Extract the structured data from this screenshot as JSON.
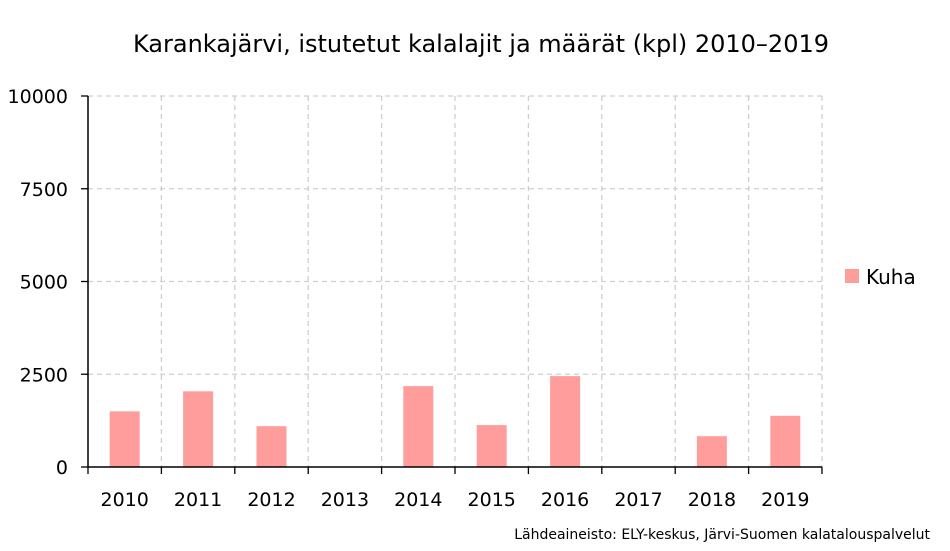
{
  "chart_data": {
    "type": "bar",
    "title": "Karankajärvi, istutetut kalalajit ja määrät (kpl) 2010–2019",
    "categories": [
      "2010",
      "2011",
      "2012",
      "2013",
      "2014",
      "2015",
      "2016",
      "2017",
      "2018",
      "2019"
    ],
    "series": [
      {
        "name": "Kuha",
        "values": [
          1500,
          2040,
          1100,
          0,
          2180,
          1130,
          2450,
          0,
          830,
          1380
        ]
      }
    ],
    "ylim": [
      0,
      10000
    ],
    "yticks": [
      "0",
      "2500",
      "5000",
      "7500",
      "10000"
    ],
    "grid": true,
    "legend_position": "right",
    "colors": {
      "Kuha": "#ff9c9c"
    },
    "source": "Lähdeaineisto: ELY-keskus, Järvi-Suomen kalatalouspalvelut"
  }
}
